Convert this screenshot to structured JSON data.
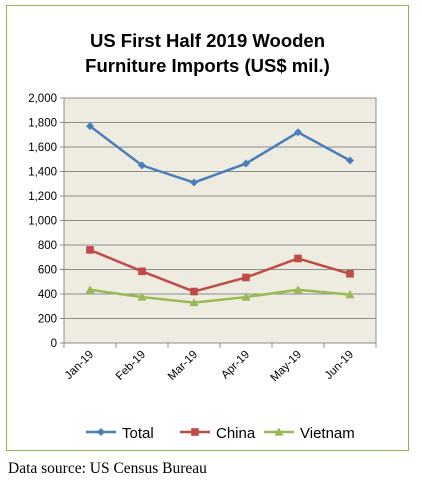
{
  "chart_data": {
    "type": "line",
    "title_lines": [
      "US First Half 2019 Wooden",
      "Furniture Imports (US$ mil.)"
    ],
    "categories": [
      "Jan-19",
      "Feb-19",
      "Mar-19",
      "Apr-19",
      "May-19",
      "Jun-19"
    ],
    "series": [
      {
        "name": "Total",
        "values": [
          1770,
          1450,
          1310,
          1465,
          1720,
          1490
        ],
        "color": "#4a7ebb",
        "marker": "diamond"
      },
      {
        "name": "China",
        "values": [
          760,
          585,
          420,
          535,
          690,
          565
        ],
        "color": "#be4b48",
        "marker": "square"
      },
      {
        "name": "Vietnam",
        "values": [
          435,
          375,
          330,
          375,
          435,
          395
        ],
        "color": "#98b954",
        "marker": "triangle"
      }
    ],
    "ylim": [
      0,
      2000
    ],
    "yticks": [
      0,
      200,
      400,
      600,
      800,
      1000,
      1200,
      1400,
      1600,
      1800,
      2000
    ],
    "ytick_labels": [
      "0",
      "200",
      "400",
      "600",
      "800",
      "1,000",
      "1,200",
      "1,400",
      "1,600",
      "1,800",
      "2,000"
    ],
    "grid": true,
    "plot_background": "#eeece1",
    "legend_position": "bottom"
  },
  "source_note": "Data source: US Census Bureau",
  "frame_color": "#8fb24a"
}
